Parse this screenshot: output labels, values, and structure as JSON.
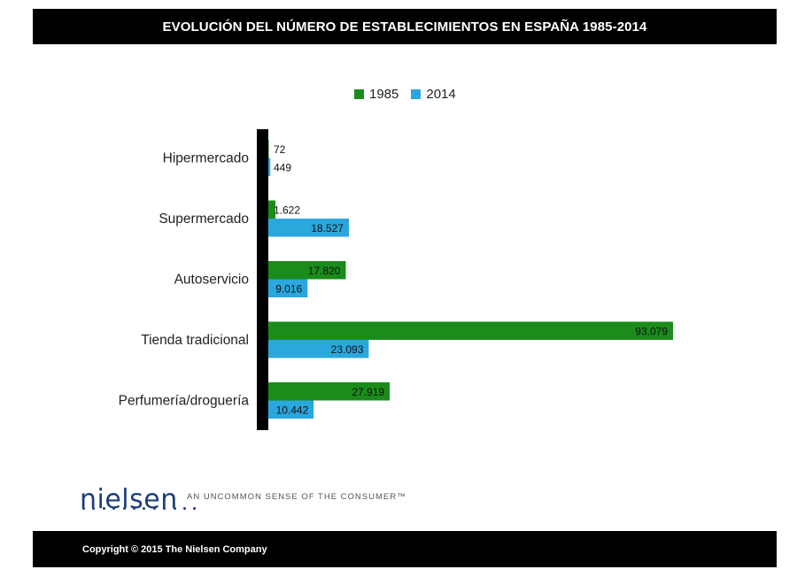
{
  "header": {
    "title": "EVOLUCIÓN DEL NÚMERO DE ESTABLECIMIENTOS EN ESPAÑA 1985-2014"
  },
  "footer": {
    "copyright": "Copyright © 2015 The Nielsen Company"
  },
  "brand": {
    "logo": "nielsen",
    "tagline": "AN UNCOMMON SENSE OF THE CONSUMER™"
  },
  "colors": {
    "series_1985": "#1a8c1a",
    "series_2014": "#2aa7dc"
  },
  "chart_data": {
    "type": "bar",
    "orientation": "horizontal",
    "title": "EVOLUCIÓN DEL NÚMERO DE ESTABLECIMIENTOS EN ESPAÑA 1985-2014",
    "categories": [
      "Hipermercado",
      "Supermercado",
      "Autoservicio",
      "Tienda tradicional",
      "Perfumería/droguería"
    ],
    "series": [
      {
        "name": "1985",
        "values": [
          72,
          1622,
          17820,
          93079,
          27919
        ],
        "labels": [
          "72",
          "1.622",
          "17.820",
          "93.079",
          "27.919"
        ]
      },
      {
        "name": "2014",
        "values": [
          449,
          18527,
          9016,
          23093,
          10442
        ],
        "labels": [
          "449",
          "18.527",
          "9.016",
          "23.093",
          "10.442"
        ]
      }
    ],
    "xlim": [
      0,
      93079
    ],
    "legend": "top",
    "grid": false
  }
}
